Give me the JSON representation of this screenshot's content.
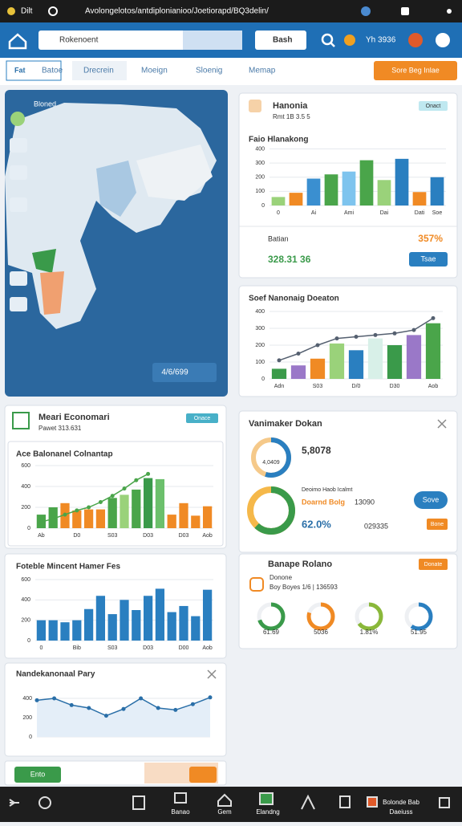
{
  "status_bar": {
    "app": "Dilt",
    "url": "Avolongelotos/antdiplonianioo/Joetiorapd/BQ3delin/"
  },
  "app_bar": {
    "search": "Rokenoent",
    "button": "Bash",
    "stat": "Yh 3936"
  },
  "tabs": [
    "Fat",
    "Batoe",
    "Drecrein",
    "Moeign",
    "Sloenig",
    "Memap"
  ],
  "tab_action": "Sore Beg Inlae",
  "map_card": {
    "title": "Bloned",
    "selector": "4/6/699"
  },
  "summary_card": {
    "title": "Hanonia",
    "subtitle": "Rmt 1B 3.5 5",
    "badge": "Onact",
    "metric_label": "Batian",
    "metric_pct": "357%",
    "metric_value": "328.31 36",
    "button": "Tsae",
    "chart": {
      "type": "bar",
      "title": "Faio Hlanakong",
      "categories": [
        "0",
        null,
        "Ai",
        null,
        "Ami",
        null,
        "Dai",
        null,
        "Dati",
        "Soe"
      ],
      "values": [
        60,
        90,
        190,
        220,
        240,
        320,
        180,
        330,
        95,
        200
      ],
      "colors": [
        "#9ad27a",
        "#f08a24",
        "#3a8fd0",
        "#4aa54a",
        "#7ec4ee",
        "#4aa54a",
        "#9ad27a",
        "#2a7fc0",
        "#f08a24",
        "#2a7fc0"
      ],
      "ylim": [
        0,
        420
      ],
      "yticks": [
        0,
        100,
        200,
        300,
        400
      ]
    }
  },
  "trend_card": {
    "chart": {
      "type": "bar",
      "title": "Soef Nanonaig Doeaton",
      "categories": [
        "Adn",
        null,
        "S03",
        null,
        "D/0",
        null,
        "D30",
        null,
        "Aob"
      ],
      "values": [
        60,
        80,
        120,
        210,
        170,
        240,
        200,
        260,
        330
      ],
      "colors": [
        "#3a9a4a",
        "#9a78c8",
        "#f08a24",
        "#9ad27a",
        "#2a7fc0",
        "#d8f0e8",
        "#3a9a4a",
        "#9a78c8",
        "#4aa54a"
      ],
      "line": [
        110,
        150,
        200,
        240,
        250,
        260,
        270,
        290,
        360
      ],
      "line_color": "#556070",
      "ylim": [
        0,
        400
      ],
      "yticks": [
        0,
        100,
        200,
        300,
        400
      ]
    }
  },
  "econ_card": {
    "title": "Meari Economari",
    "subtitle": "Pawet 313.631",
    "badge": "Onace",
    "chart": {
      "type": "bar",
      "title": "Ace Balonanel Colnantap",
      "categories": [
        "Ab",
        null,
        null,
        "D0",
        null,
        null,
        "S03",
        null,
        null,
        "D03",
        null,
        null,
        "D03",
        null,
        "Aob"
      ],
      "values": [
        130,
        200,
        240,
        170,
        180,
        180,
        290,
        320,
        370,
        480,
        470,
        130,
        240,
        120,
        210
      ],
      "colors": [
        "#4aa54a",
        "#4aa54a",
        "#f08a24",
        "#f08a24",
        "#f08a24",
        "#f08a24",
        "#4aa54a",
        "#9ad27a",
        "#4aa54a",
        "#3a9a4a",
        "#6cc06c",
        "#f08a24",
        "#f08a24",
        "#f08a24",
        "#f08a24"
      ],
      "line": [
        60,
        90,
        130,
        170,
        200,
        250,
        310,
        380,
        460,
        520,
        null,
        null,
        null,
        null,
        null
      ],
      "line_color": "#4aa54a",
      "ylim": [
        0,
        600
      ],
      "yticks": [
        0,
        200,
        400,
        600
      ]
    }
  },
  "hist_card": {
    "chart": {
      "type": "bar",
      "title": "Foteble Mincent Hamer Fes",
      "categories": [
        "0",
        null,
        null,
        "Bib",
        null,
        null,
        "S03",
        null,
        null,
        "D03",
        null,
        null,
        "D00",
        null,
        "Aob"
      ],
      "values": [
        200,
        200,
        180,
        200,
        310,
        440,
        260,
        400,
        300,
        440,
        510,
        280,
        340,
        240,
        500
      ],
      "color": "#2a7fc0",
      "ylim": [
        0,
        600
      ],
      "yticks": [
        0,
        200,
        400,
        600
      ]
    }
  },
  "line_card": {
    "chart": {
      "type": "line",
      "title": "Nandekanonaal Pary",
      "values": [
        380,
        400,
        330,
        300,
        220,
        290,
        400,
        300,
        280,
        340,
        410
      ],
      "color": "#2a6fa8",
      "ylim": [
        0,
        500
      ],
      "yticks": [
        0,
        200,
        400
      ]
    }
  },
  "toolbar": {
    "button": "Ento"
  },
  "donut_card": {
    "title": "Vanimaker Dokan",
    "value": "5,8078",
    "small": "4,0409",
    "note": "Deoimo Haob Icalmt",
    "orange_label": "Doarnd Bolg",
    "figure": "13090",
    "code": "029335",
    "button": "Sove",
    "button2": "Bone",
    "rings": [
      {
        "percent": 55,
        "color": "#2a7fc0"
      },
      {
        "percent": 62,
        "color": "#3a9a4a",
        "label": "62.0%"
      }
    ]
  },
  "gauge_card": {
    "title": "Banape Rolano",
    "badge": "Donate",
    "line1": "Donone",
    "line2": "Boy Boyes 1/6 | 136593",
    "rings": [
      {
        "percent": 70,
        "color": "#3a9a4a",
        "caption": "61.69"
      },
      {
        "percent": 80,
        "color": "#f08a24",
        "caption": "5036"
      },
      {
        "percent": 65,
        "color": "#8ab83a",
        "caption": "1.81%"
      },
      {
        "percent": 60,
        "color": "#2a7fc0",
        "caption": "51.95"
      }
    ]
  },
  "bottom_nav": [
    "Banao",
    "Gem",
    "Elandng",
    "Bolonde Bab",
    "Daeiuss"
  ]
}
